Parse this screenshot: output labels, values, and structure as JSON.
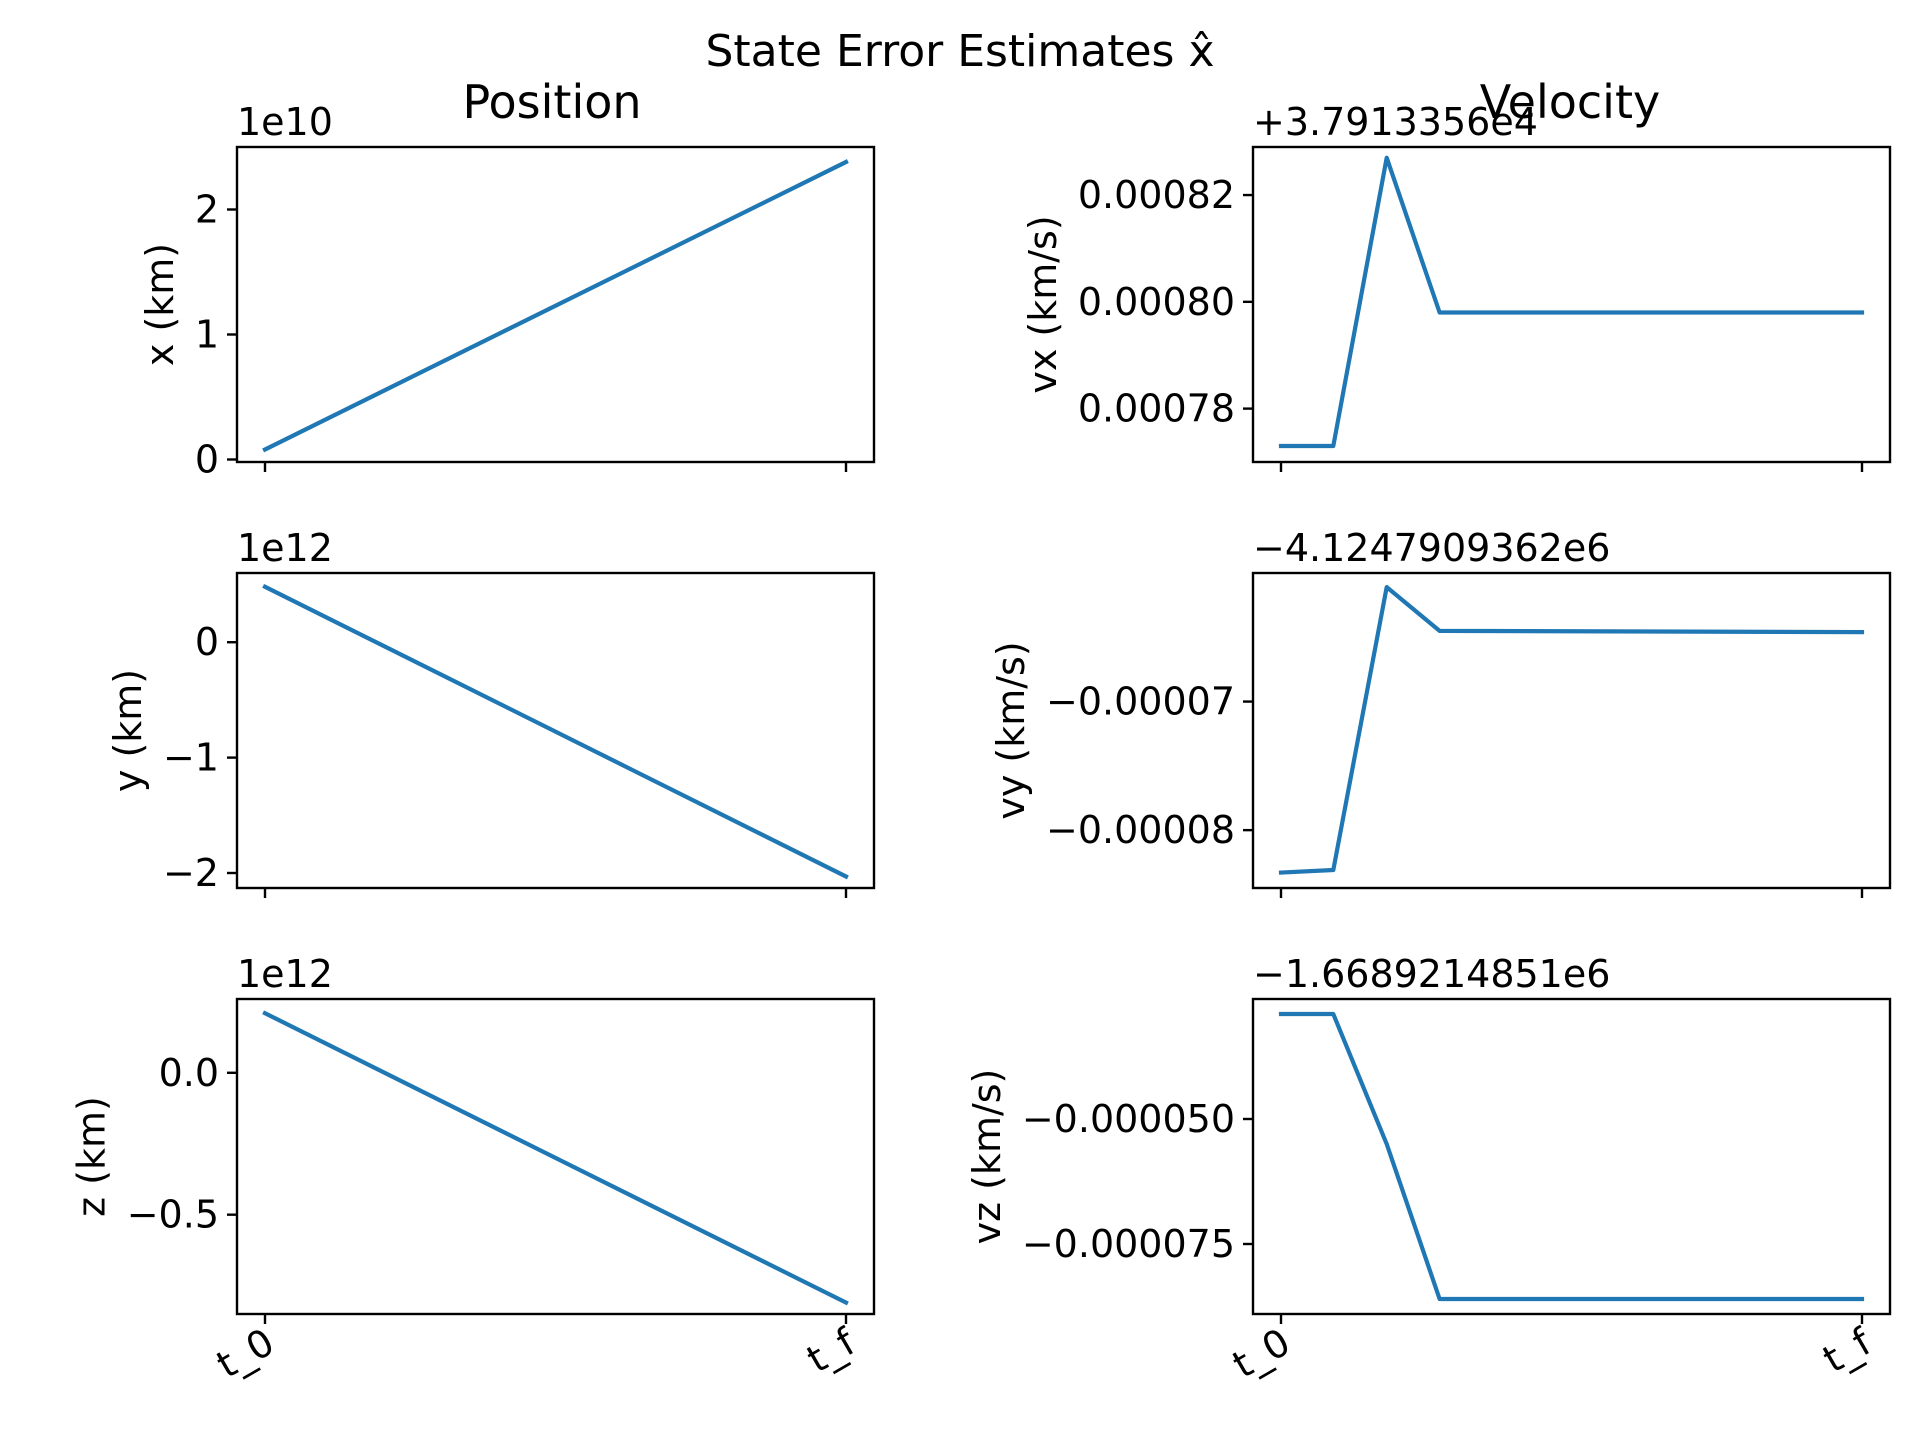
{
  "suptitle": "State Error Estimates x̂",
  "column_titles": {
    "left": "Position",
    "right": "Velocity"
  },
  "colors": {
    "line": "#1f77b4",
    "axes": "#000000",
    "background": "#ffffff"
  },
  "chart_data": [
    {
      "type": "line",
      "panel": "position-x",
      "title": "",
      "xlabel": "",
      "ylabel": "x (km)",
      "offset_text": "1e10",
      "x_categories": [
        "t_0",
        "t_f"
      ],
      "x_tick_labels_visible": false,
      "x": [
        0,
        1
      ],
      "y": [
        0.08,
        2.38
      ],
      "ylim": [
        -0.02,
        2.5
      ],
      "y_ticks": [
        0,
        1,
        2
      ],
      "y_tick_labels": [
        "0",
        "1",
        "2"
      ],
      "grid": false,
      "legend": "none"
    },
    {
      "type": "line",
      "panel": "velocity-vx",
      "title": "",
      "xlabel": "",
      "ylabel": "vx (km/s)",
      "offset_text": "+3.7913356e4",
      "x_categories": [
        "t_0",
        "t_f"
      ],
      "x_tick_labels_visible": false,
      "x": [
        0,
        0.09,
        0.182,
        0.273,
        1
      ],
      "y": [
        0.000773,
        0.000773,
        0.000827,
        0.000798,
        0.000798
      ],
      "ylim": [
        0.00077,
        0.000829
      ],
      "y_ticks": [
        0.00078,
        0.0008,
        0.00082
      ],
      "y_tick_labels": [
        "0.00078",
        "0.00080",
        "0.00082"
      ],
      "grid": false,
      "legend": "none"
    },
    {
      "type": "line",
      "panel": "position-y",
      "title": "",
      "xlabel": "",
      "ylabel": "y (km)",
      "offset_text": "1e12",
      "x_categories": [
        "t_0",
        "t_f"
      ],
      "x_tick_labels_visible": false,
      "x": [
        0,
        1
      ],
      "y": [
        0.48,
        -2.03
      ],
      "ylim": [
        -2.13,
        0.6
      ],
      "y_ticks": [
        -2,
        -1,
        0
      ],
      "y_tick_labels": [
        "−2",
        "−1",
        "0"
      ],
      "grid": false,
      "legend": "none"
    },
    {
      "type": "line",
      "panel": "velocity-vy",
      "title": "",
      "xlabel": "",
      "ylabel": "vy (km/s)",
      "offset_text": "−4.1247909362e6",
      "x_categories": [
        "t_0",
        "t_f"
      ],
      "x_tick_labels_visible": false,
      "x": [
        0,
        0.09,
        0.182,
        0.273,
        1
      ],
      "y": [
        -8.33e-05,
        -8.31e-05,
        -6.11e-05,
        -6.45e-05,
        -6.46e-05
      ],
      "ylim": [
        -8.45e-05,
        -6e-05
      ],
      "y_ticks": [
        -8e-05,
        -7e-05
      ],
      "y_tick_labels": [
        "−0.00008",
        "−0.00007"
      ],
      "grid": false,
      "legend": "none"
    },
    {
      "type": "line",
      "panel": "position-z",
      "title": "",
      "xlabel": "",
      "ylabel": "z (km)",
      "offset_text": "1e12",
      "x_categories": [
        "t_0",
        "t_f"
      ],
      "x_tick_labels_visible": true,
      "x": [
        0,
        1
      ],
      "y": [
        0.21,
        -0.81
      ],
      "ylim": [
        -0.85,
        0.26
      ],
      "y_ticks": [
        -0.5,
        0.0
      ],
      "y_tick_labels": [
        "−0.5",
        "0.0"
      ],
      "grid": false,
      "legend": "none"
    },
    {
      "type": "line",
      "panel": "velocity-vz",
      "title": "",
      "xlabel": "",
      "ylabel": "vz (km/s)",
      "offset_text": "−1.6689214851e6",
      "x_categories": [
        "t_0",
        "t_f"
      ],
      "x_tick_labels_visible": true,
      "x": [
        0,
        0.09,
        0.182,
        0.273,
        1
      ],
      "y": [
        -2.9e-05,
        -2.9e-05,
        -5.5e-05,
        -8.6e-05,
        -8.6e-05
      ],
      "ylim": [
        -8.9e-05,
        -2.6e-05
      ],
      "y_ticks": [
        -7.5e-05,
        -5e-05
      ],
      "y_tick_labels": [
        "−0.000075",
        "−0.000050"
      ],
      "grid": false,
      "legend": "none"
    }
  ]
}
